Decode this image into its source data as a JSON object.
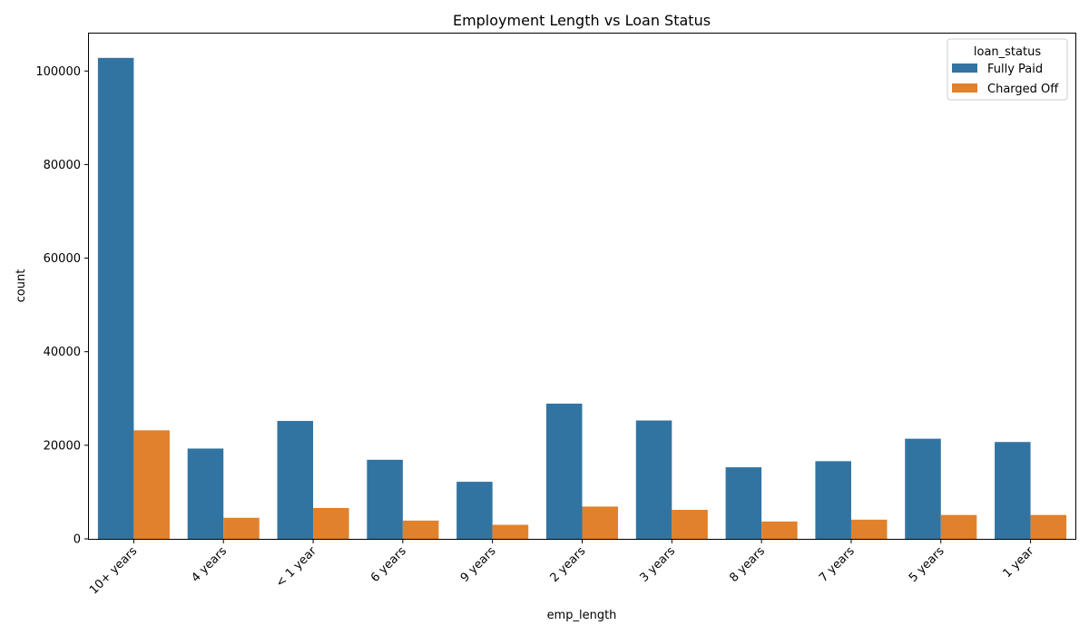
{
  "chart_data": {
    "type": "bar",
    "title": "Employment Length vs Loan Status",
    "xlabel": "emp_length",
    "ylabel": "count",
    "categories": [
      "10+ years",
      "4 years",
      "< 1 year",
      "6 years",
      "9 years",
      "2 years",
      "3 years",
      "8 years",
      "7 years",
      "5 years",
      "1 year"
    ],
    "series": [
      {
        "name": "Fully Paid",
        "color": "#3274a1",
        "values": [
          102800,
          19300,
          25200,
          16900,
          12200,
          28900,
          25300,
          15300,
          16600,
          21400,
          20700
        ]
      },
      {
        "name": "Charged Off",
        "color": "#e1812c",
        "values": [
          23200,
          4500,
          6600,
          3900,
          3000,
          6900,
          6200,
          3700,
          4100,
          5100,
          5100
        ]
      }
    ],
    "yticks": [
      0,
      20000,
      40000,
      60000,
      80000,
      100000
    ],
    "ylim": [
      0,
      108000
    ],
    "legend": {
      "title": "loan_status",
      "position": "top-right"
    },
    "grid": false
  }
}
